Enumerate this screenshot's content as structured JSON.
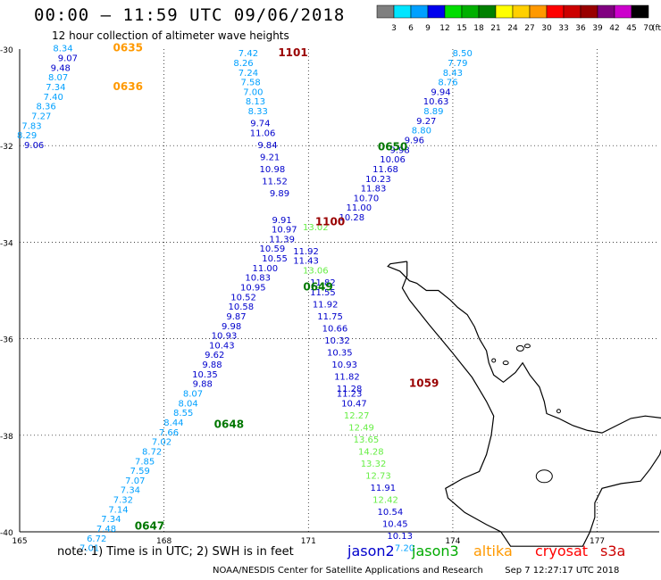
{
  "header": {
    "title": "00:00 – 11:59 UTC 09/06/2018",
    "subtitle": "12 hour collection of altimeter wave heights"
  },
  "legend": {
    "unit": "(ft)",
    "bins": [
      {
        "label": "3",
        "color": "#7f7f7f"
      },
      {
        "label": "6",
        "color": "#00e5ff"
      },
      {
        "label": "9",
        "color": "#00a0ff"
      },
      {
        "label": "12",
        "color": "#0000ee"
      },
      {
        "label": "15",
        "color": "#00dd00"
      },
      {
        "label": "18",
        "color": "#00b000"
      },
      {
        "label": "21",
        "color": "#008000"
      },
      {
        "label": "24",
        "color": "#ffff00"
      },
      {
        "label": "27",
        "color": "#ffd000"
      },
      {
        "label": "30",
        "color": "#ff9900"
      },
      {
        "label": "33",
        "color": "#ff0000"
      },
      {
        "label": "36",
        "color": "#cc0000"
      },
      {
        "label": "39",
        "color": "#990000"
      },
      {
        "label": "42",
        "color": "#800080"
      },
      {
        "label": "45",
        "color": "#cc00cc"
      },
      {
        "label": "70",
        "color": "#000000"
      }
    ]
  },
  "axes": {
    "lat_labels": [
      "-30",
      "-32",
      "-34",
      "-36",
      "-38",
      "-40"
    ],
    "lon_labels": [
      "165",
      "168",
      "171",
      "174",
      "177"
    ]
  },
  "note": "note: 1) Time is in UTC; 2) SWH is in feet",
  "satellites": [
    {
      "name": "jason2",
      "color": "#0000cc"
    },
    {
      "name": "jason3",
      "color": "#00aa00"
    },
    {
      "name": "altika",
      "color": "#ff9900"
    },
    {
      "name": "cryosat",
      "color": "#ff0000"
    },
    {
      "name": "s3a",
      "color": "#cc0000"
    }
  ],
  "footer": {
    "org": "NOAA/NESDIS Center for Satellite Applications and Research",
    "timestamp": "Sep  7 12:27:17 UTC 2018"
  },
  "track_times": [
    {
      "text": "0635",
      "color": "#ff9900",
      "lon": 167.25,
      "lat": -30.05
    },
    {
      "text": "0636",
      "color": "#ff9900",
      "lon": 167.25,
      "lat": -30.85
    },
    {
      "text": "1101",
      "color": "#990000",
      "lon": 170.68,
      "lat": -30.15
    },
    {
      "text": "0650",
      "color": "#007700",
      "lon": 172.75,
      "lat": -32.1
    },
    {
      "text": "1100",
      "color": "#990000",
      "lon": 171.45,
      "lat": -33.65
    },
    {
      "text": "0649",
      "color": "#007700",
      "lon": 171.2,
      "lat": -35.0
    },
    {
      "text": "0648",
      "color": "#007700",
      "lon": 169.35,
      "lat": -37.85
    },
    {
      "text": "1059",
      "color": "#990000",
      "lon": 173.4,
      "lat": -37.0
    },
    {
      "text": "0647",
      "color": "#007700",
      "lon": 167.7,
      "lat": -39.95
    }
  ],
  "observations": [
    {
      "text": "8.34",
      "lon": 165.9,
      "lat": -30.05,
      "color": "#00a0ff"
    },
    {
      "text": "9.07",
      "lon": 166.0,
      "lat": -30.25,
      "color": "#0000cc"
    },
    {
      "text": "9.48",
      "lon": 165.85,
      "lat": -30.45,
      "color": "#0000cc"
    },
    {
      "text": "8.07",
      "lon": 165.8,
      "lat": -30.65,
      "color": "#00a0ff"
    },
    {
      "text": "7.34",
      "lon": 165.75,
      "lat": -30.85,
      "color": "#00a0ff"
    },
    {
      "text": "7.40",
      "lon": 165.7,
      "lat": -31.05,
      "color": "#00a0ff"
    },
    {
      "text": "8.36",
      "lon": 165.55,
      "lat": -31.25,
      "color": "#00a0ff"
    },
    {
      "text": "7.27",
      "lon": 165.45,
      "lat": -31.45,
      "color": "#00a0ff"
    },
    {
      "text": "7.83",
      "lon": 165.25,
      "lat": -31.65,
      "color": "#00a0ff"
    },
    {
      "text": "8.29",
      "lon": 165.15,
      "lat": -31.85,
      "color": "#00a0ff"
    },
    {
      "text": "9.06",
      "lon": 165.3,
      "lat": -32.05,
      "color": "#0000cc"
    },
    {
      "text": "7.42",
      "lon": 169.75,
      "lat": -30.15,
      "color": "#00a0ff"
    },
    {
      "text": "8.26",
      "lon": 169.65,
      "lat": -30.35,
      "color": "#00a0ff"
    },
    {
      "text": "7.24",
      "lon": 169.75,
      "lat": -30.55,
      "color": "#00a0ff"
    },
    {
      "text": "7.58",
      "lon": 169.8,
      "lat": -30.75,
      "color": "#00a0ff"
    },
    {
      "text": "7.00",
      "lon": 169.85,
      "lat": -30.95,
      "color": "#00a0ff"
    },
    {
      "text": "8.13",
      "lon": 169.9,
      "lat": -31.15,
      "color": "#00a0ff"
    },
    {
      "text": "8.33",
      "lon": 169.95,
      "lat": -31.35,
      "color": "#00a0ff"
    },
    {
      "text": "9.74",
      "lon": 170.0,
      "lat": -31.6,
      "color": "#0000cc"
    },
    {
      "text": "11.06",
      "lon": 170.05,
      "lat": -31.8,
      "color": "#0000cc"
    },
    {
      "text": "9.84",
      "lon": 170.15,
      "lat": -32.05,
      "color": "#0000cc"
    },
    {
      "text": "9.21",
      "lon": 170.2,
      "lat": -32.3,
      "color": "#0000cc"
    },
    {
      "text": "10.98",
      "lon": 170.25,
      "lat": -32.55,
      "color": "#0000cc"
    },
    {
      "text": "11.52",
      "lon": 170.3,
      "lat": -32.8,
      "color": "#0000cc"
    },
    {
      "text": "9.89",
      "lon": 170.4,
      "lat": -33.05,
      "color": "#0000cc"
    },
    {
      "text": "9.91",
      "lon": 170.45,
      "lat": -33.6,
      "color": "#0000cc"
    },
    {
      "text": "10.97",
      "lon": 170.5,
      "lat": -33.8,
      "color": "#0000cc"
    },
    {
      "text": "11.39",
      "lon": 170.45,
      "lat": -34.0,
      "color": "#0000cc"
    },
    {
      "text": "10.59",
      "lon": 170.25,
      "lat": -34.2,
      "color": "#0000cc"
    },
    {
      "text": "10.55",
      "lon": 170.3,
      "lat": -34.4,
      "color": "#0000cc"
    },
    {
      "text": "11.00",
      "lon": 170.1,
      "lat": -34.6,
      "color": "#0000cc"
    },
    {
      "text": "10.83",
      "lon": 169.95,
      "lat": -34.8,
      "color": "#0000cc"
    },
    {
      "text": "10.95",
      "lon": 169.85,
      "lat": -35.0,
      "color": "#0000cc"
    },
    {
      "text": "10.52",
      "lon": 169.65,
      "lat": -35.2,
      "color": "#0000cc"
    },
    {
      "text": "10.58",
      "lon": 169.6,
      "lat": -35.4,
      "color": "#0000cc"
    },
    {
      "text": "9.87",
      "lon": 169.5,
      "lat": -35.6,
      "color": "#0000cc"
    },
    {
      "text": "9.98",
      "lon": 169.4,
      "lat": -35.8,
      "color": "#0000cc"
    },
    {
      "text": "10.93",
      "lon": 169.25,
      "lat": -36.0,
      "color": "#0000cc"
    },
    {
      "text": "10.43",
      "lon": 169.2,
      "lat": -36.2,
      "color": "#0000cc"
    },
    {
      "text": "9.62",
      "lon": 169.05,
      "lat": -36.4,
      "color": "#0000cc"
    },
    {
      "text": "9.88",
      "lon": 169.0,
      "lat": -36.6,
      "color": "#0000cc"
    },
    {
      "text": "10.35",
      "lon": 168.85,
      "lat": -36.8,
      "color": "#0000cc"
    },
    {
      "text": "9.88",
      "lon": 168.8,
      "lat": -37.0,
      "color": "#0000cc"
    },
    {
      "text": "8.07",
      "lon": 168.6,
      "lat": -37.2,
      "color": "#00a0ff"
    },
    {
      "text": "8.04",
      "lon": 168.5,
      "lat": -37.4,
      "color": "#00a0ff"
    },
    {
      "text": "8.55",
      "lon": 168.4,
      "lat": -37.6,
      "color": "#00a0ff"
    },
    {
      "text": "8.44",
      "lon": 168.2,
      "lat": -37.8,
      "color": "#00a0ff"
    },
    {
      "text": "7.66",
      "lon": 168.1,
      "lat": -38.0,
      "color": "#00a0ff"
    },
    {
      "text": "7.02",
      "lon": 167.95,
      "lat": -38.2,
      "color": "#00a0ff"
    },
    {
      "text": "8.72",
      "lon": 167.75,
      "lat": -38.4,
      "color": "#00a0ff"
    },
    {
      "text": "7.85",
      "lon": 167.6,
      "lat": -38.6,
      "color": "#00a0ff"
    },
    {
      "text": "7.59",
      "lon": 167.5,
      "lat": -38.8,
      "color": "#00a0ff"
    },
    {
      "text": "7.07",
      "lon": 167.4,
      "lat": -39.0,
      "color": "#00a0ff"
    },
    {
      "text": "7.34",
      "lon": 167.3,
      "lat": -39.2,
      "color": "#00a0ff"
    },
    {
      "text": "7.32",
      "lon": 167.15,
      "lat": -39.4,
      "color": "#00a0ff"
    },
    {
      "text": "7.14",
      "lon": 167.05,
      "lat": -39.6,
      "color": "#00a0ff"
    },
    {
      "text": "7.34",
      "lon": 166.9,
      "lat": -39.8,
      "color": "#00a0ff"
    },
    {
      "text": "7.48",
      "lon": 166.8,
      "lat": -40.0,
      "color": "#00a0ff"
    },
    {
      "text": "6.72",
      "lon": 166.6,
      "lat": -40.2,
      "color": "#00a0ff"
    },
    {
      "text": "7.01",
      "lon": 166.45,
      "lat": -40.4,
      "color": "#00a0ff"
    },
    {
      "text": "8.50",
      "lon": 174.2,
      "lat": -30.15,
      "color": "#00a0ff"
    },
    {
      "text": "7.79",
      "lon": 174.1,
      "lat": -30.35,
      "color": "#00a0ff"
    },
    {
      "text": "8.43",
      "lon": 174.0,
      "lat": -30.55,
      "color": "#00a0ff"
    },
    {
      "text": "8.76",
      "lon": 173.9,
      "lat": -30.75,
      "color": "#00a0ff"
    },
    {
      "text": "9.94",
      "lon": 173.75,
      "lat": -30.95,
      "color": "#0000cc"
    },
    {
      "text": "10.63",
      "lon": 173.65,
      "lat": -31.15,
      "color": "#0000cc"
    },
    {
      "text": "8.89",
      "lon": 173.6,
      "lat": -31.35,
      "color": "#00a0ff"
    },
    {
      "text": "9.27",
      "lon": 173.45,
      "lat": -31.55,
      "color": "#0000cc"
    },
    {
      "text": "8.80",
      "lon": 173.35,
      "lat": -31.75,
      "color": "#00a0ff"
    },
    {
      "text": "9.96",
      "lon": 173.2,
      "lat": -31.95,
      "color": "#0000cc"
    },
    {
      "text": "9.98",
      "lon": 172.9,
      "lat": -32.15,
      "color": "#0000cc"
    },
    {
      "text": "10.06",
      "lon": 172.75,
      "lat": -32.35,
      "color": "#0000cc"
    },
    {
      "text": "11.68",
      "lon": 172.6,
      "lat": -32.55,
      "color": "#0000cc"
    },
    {
      "text": "10.23",
      "lon": 172.45,
      "lat": -32.75,
      "color": "#0000cc"
    },
    {
      "text": "11.83",
      "lon": 172.35,
      "lat": -32.95,
      "color": "#0000cc"
    },
    {
      "text": "10.70",
      "lon": 172.2,
      "lat": -33.15,
      "color": "#0000cc"
    },
    {
      "text": "11.00",
      "lon": 172.05,
      "lat": -33.35,
      "color": "#0000cc"
    },
    {
      "text": "10.28",
      "lon": 171.9,
      "lat": -33.55,
      "color": "#0000cc"
    },
    {
      "text": "13.02",
      "lon": 171.15,
      "lat": -33.75,
      "color": "#66ee44"
    },
    {
      "text": "11.92",
      "lon": 170.95,
      "lat": -34.25,
      "color": "#0000cc"
    },
    {
      "text": "11.43",
      "lon": 170.95,
      "lat": -34.45,
      "color": "#0000cc"
    },
    {
      "text": "13.06",
      "lon": 171.15,
      "lat": -34.65,
      "color": "#66ee44"
    },
    {
      "text": "11.82",
      "lon": 171.3,
      "lat": -34.9,
      "color": "#0000cc"
    },
    {
      "text": "11.55",
      "lon": 171.3,
      "lat": -35.1,
      "color": "#0000cc"
    },
    {
      "text": "11.92",
      "lon": 171.35,
      "lat": -35.35,
      "color": "#0000cc"
    },
    {
      "text": "11.75",
      "lon": 171.45,
      "lat": -35.6,
      "color": "#0000cc"
    },
    {
      "text": "10.66",
      "lon": 171.55,
      "lat": -35.85,
      "color": "#0000cc"
    },
    {
      "text": "10.32",
      "lon": 171.6,
      "lat": -36.1,
      "color": "#0000cc"
    },
    {
      "text": "10.35",
      "lon": 171.65,
      "lat": -36.35,
      "color": "#0000cc"
    },
    {
      "text": "10.93",
      "lon": 171.75,
      "lat": -36.6,
      "color": "#0000cc"
    },
    {
      "text": "11.82",
      "lon": 171.8,
      "lat": -36.85,
      "color": "#0000cc"
    },
    {
      "text": "11.28",
      "lon": 171.85,
      "lat": -37.1,
      "color": "#0000cc"
    },
    {
      "text": "11.23",
      "lon": 171.85,
      "lat": -37.2,
      "color": "#0000cc"
    },
    {
      "text": "10.47",
      "lon": 171.95,
      "lat": -37.4,
      "color": "#0000cc"
    },
    {
      "text": "12.27",
      "lon": 172.0,
      "lat": -37.65,
      "color": "#66ee44"
    },
    {
      "text": "12.49",
      "lon": 172.1,
      "lat": -37.9,
      "color": "#66ee44"
    },
    {
      "text": "13.65",
      "lon": 172.2,
      "lat": -38.15,
      "color": "#66ee44"
    },
    {
      "text": "14.28",
      "lon": 172.3,
      "lat": -38.4,
      "color": "#66ee44"
    },
    {
      "text": "13.32",
      "lon": 172.35,
      "lat": -38.65,
      "color": "#66ee44"
    },
    {
      "text": "12.73",
      "lon": 172.45,
      "lat": -38.9,
      "color": "#66ee44"
    },
    {
      "text": "11.91",
      "lon": 172.55,
      "lat": -39.15,
      "color": "#0000cc"
    },
    {
      "text": "12.42",
      "lon": 172.6,
      "lat": -39.4,
      "color": "#66ee44"
    },
    {
      "text": "10.54",
      "lon": 172.7,
      "lat": -39.65,
      "color": "#0000cc"
    },
    {
      "text": "10.45",
      "lon": 172.8,
      "lat": -39.9,
      "color": "#0000cc"
    },
    {
      "text": "10.13",
      "lon": 172.9,
      "lat": -40.15,
      "color": "#0000cc"
    },
    {
      "text": "7.20",
      "lon": 173.0,
      "lat": -40.4,
      "color": "#00a0ff"
    }
  ]
}
